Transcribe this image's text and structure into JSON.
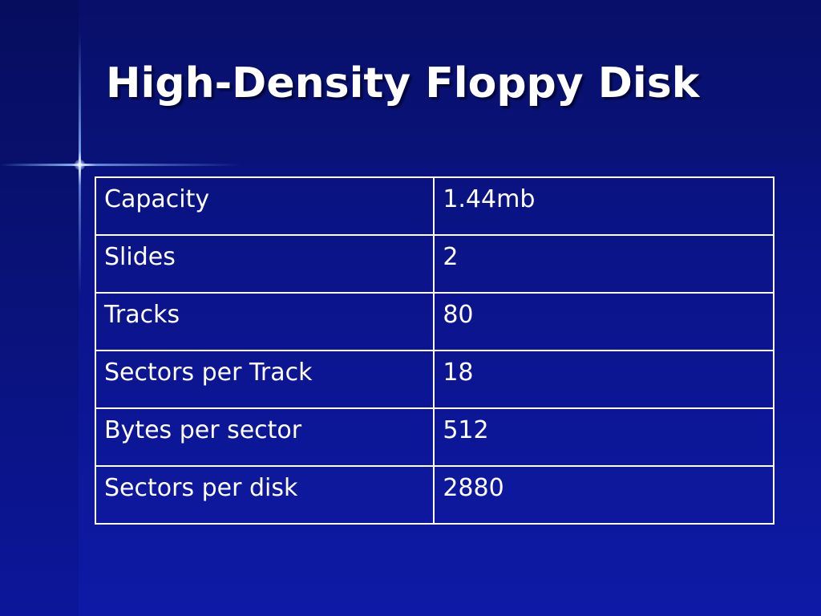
{
  "slide": {
    "title": "High-Density Floppy Disk"
  },
  "table": {
    "rows": [
      {
        "label": "Capacity",
        "value": "1.44mb"
      },
      {
        "label": "Slides",
        "value": "2"
      },
      {
        "label": "Tracks",
        "value": "80"
      },
      {
        "label": "Sectors per Track",
        "value": "18"
      },
      {
        "label": "Bytes per sector",
        "value": "512"
      },
      {
        "label": "Sectors per disk",
        "value": "2880"
      }
    ]
  },
  "colors": {
    "background": "#0d1594",
    "text": "#ffffff",
    "border": "#ffffff"
  }
}
